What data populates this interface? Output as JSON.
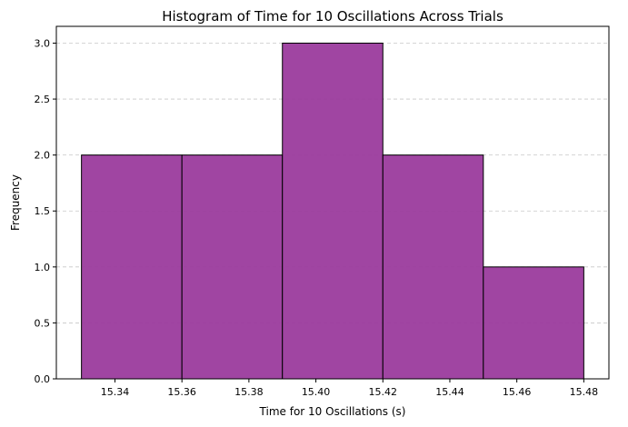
{
  "chart_data": {
    "type": "bar",
    "title": "Histogram of Time for 10 Oscillations Across Trials",
    "xlabel": "Time for 10 Oscillations (s)",
    "ylabel": "Frequency",
    "bins": [
      {
        "start": 15.33,
        "end": 15.36,
        "count": 2
      },
      {
        "start": 15.36,
        "end": 15.39,
        "count": 2
      },
      {
        "start": 15.39,
        "end": 15.42,
        "count": 3
      },
      {
        "start": 15.42,
        "end": 15.45,
        "count": 2
      },
      {
        "start": 15.45,
        "end": 15.48,
        "count": 1
      }
    ],
    "xlim": [
      15.3225,
      15.4875
    ],
    "ylim": [
      0,
      3.15
    ],
    "xticks": [
      15.34,
      15.36,
      15.38,
      15.4,
      15.42,
      15.44,
      15.46,
      15.48
    ],
    "xtick_labels": [
      "15.34",
      "15.36",
      "15.38",
      "15.40",
      "15.42",
      "15.44",
      "15.46",
      "15.48"
    ],
    "yticks": [
      0.0,
      0.5,
      1.0,
      1.5,
      2.0,
      2.5,
      3.0
    ],
    "ytick_labels": [
      "0.0",
      "0.5",
      "1.0",
      "1.5",
      "2.0",
      "2.5",
      "3.0"
    ],
    "grid": {
      "y": true,
      "x": false,
      "style": "dashed"
    },
    "bar_color": "#9b3b9d",
    "edge_color": "#000000"
  }
}
